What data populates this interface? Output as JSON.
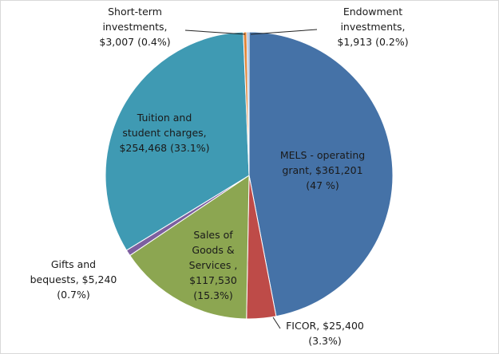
{
  "chart_data": {
    "type": "pie",
    "title": "",
    "slices": [
      {
        "name": "MELS - operating grant",
        "value": 361201,
        "percent": 47.0,
        "color": "#4572A7"
      },
      {
        "name": "FICOR",
        "value": 25400,
        "percent": 3.3,
        "color": "#BE4B48"
      },
      {
        "name": "Sales of Goods & Services",
        "value": 117530,
        "percent": 15.3,
        "color": "#8CA651"
      },
      {
        "name": "Gifts and bequests",
        "value": 5240,
        "percent": 0.7,
        "color": "#7D5FA0"
      },
      {
        "name": "Tuition and student charges",
        "value": 254468,
        "percent": 33.1,
        "color": "#3F9AB3"
      },
      {
        "name": "Short-term investments",
        "value": 3007,
        "percent": 0.4,
        "color": "#E0853A"
      },
      {
        "name": "Endowment investments",
        "value": 1913,
        "percent": 0.2,
        "color": "#9CB6DB"
      }
    ],
    "labels": {
      "mels": [
        "MELS - operating",
        "grant,  $361,201",
        "(47 %)"
      ],
      "ficor": [
        "FICOR,  $25,400",
        "(3.3%)"
      ],
      "sales": [
        "Sales of",
        "Goods &",
        "Services ,",
        "$117,530",
        "(15.3%)"
      ],
      "gifts": [
        "Gifts and",
        "bequests,  $5,240",
        "(0.7%)"
      ],
      "tuition": [
        "Tuition and",
        "student charges,",
        "$254,468 (33.1%)"
      ],
      "shortterm": [
        "Short-term",
        "investments,",
        "$3,007 (0.4%)"
      ],
      "endowment": [
        "Endowment",
        "investments,",
        "$1,913 (0.2%)"
      ]
    },
    "legend": "none"
  }
}
